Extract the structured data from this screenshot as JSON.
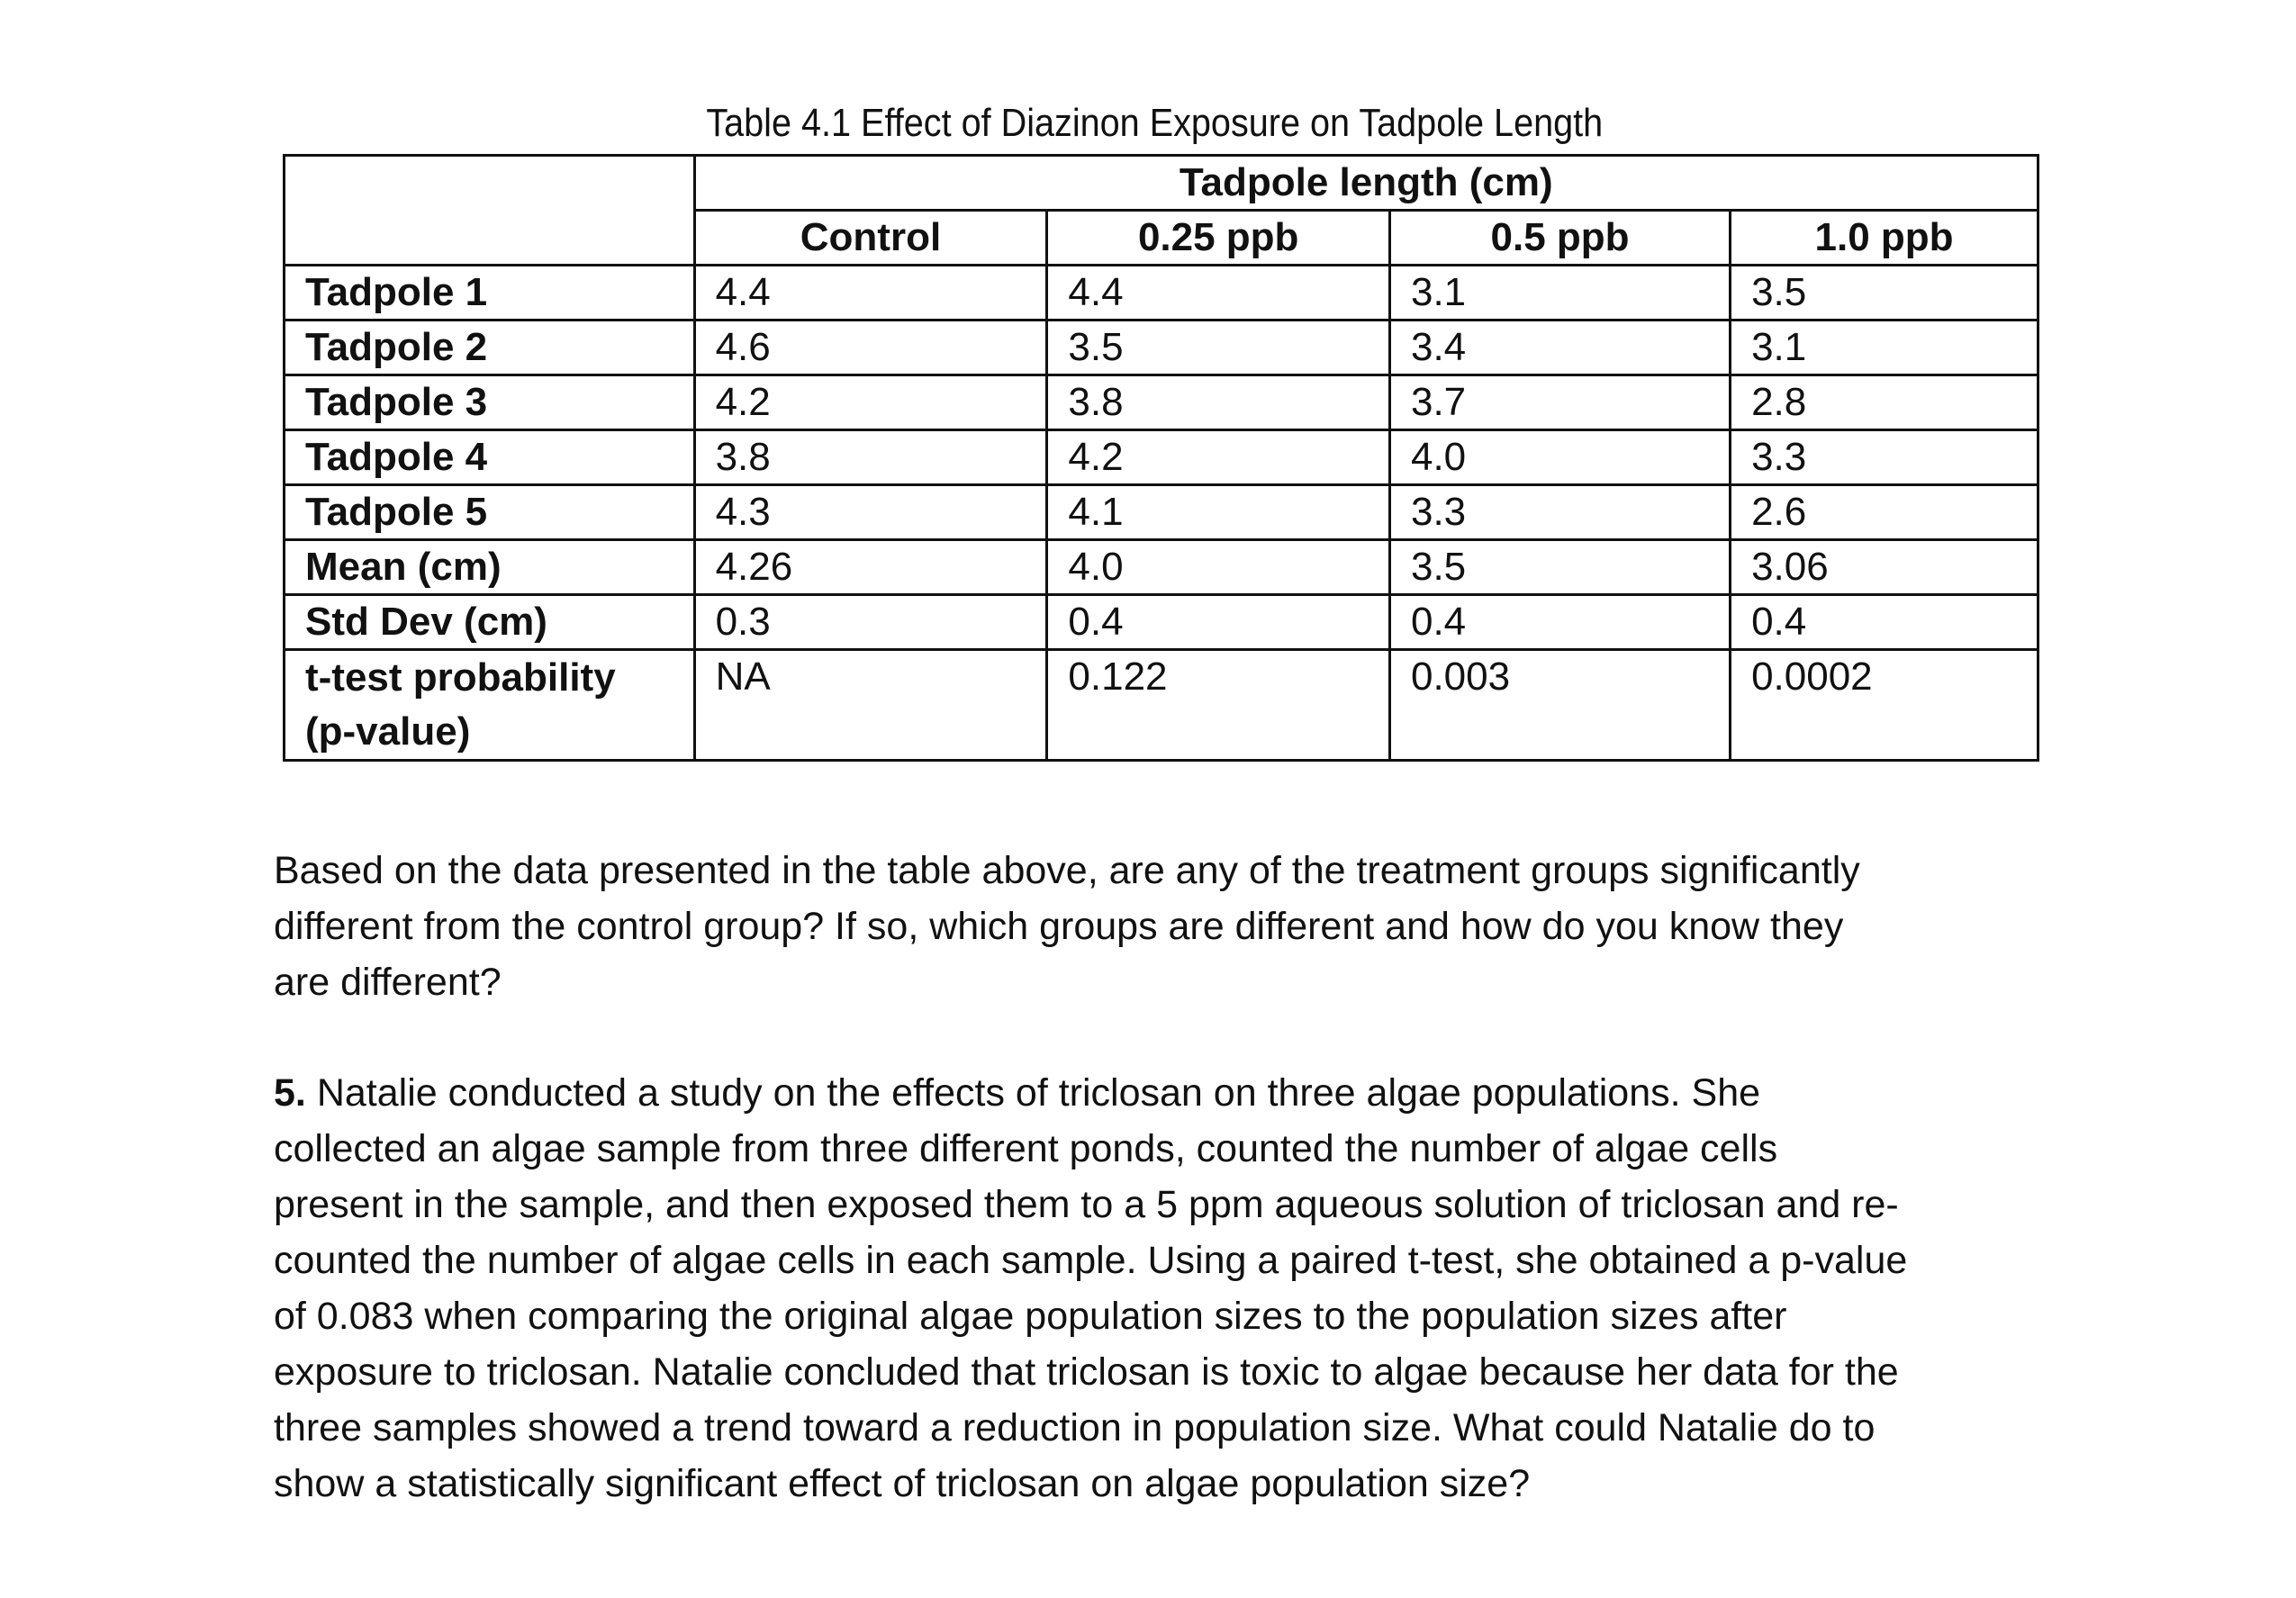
{
  "table": {
    "caption": "Table 4.1 Effect of Diazinon Exposure on Tadpole Length",
    "group_header": "Tadpole length (cm)",
    "columns": [
      "Control",
      "0.25 ppb",
      "0.5 ppb",
      "1.0 ppb"
    ],
    "rows": [
      {
        "label": "Tadpole 1",
        "values": [
          "4.4",
          "4.4",
          "3.1",
          "3.5"
        ]
      },
      {
        "label": "Tadpole 2",
        "values": [
          "4.6",
          "3.5",
          "3.4",
          "3.1"
        ]
      },
      {
        "label": "Tadpole 3",
        "values": [
          "4.2",
          "3.8",
          "3.7",
          "2.8"
        ]
      },
      {
        "label": "Tadpole 4",
        "values": [
          "3.8",
          "4.2",
          "4.0",
          "3.3"
        ]
      },
      {
        "label": "Tadpole 5",
        "values": [
          "4.3",
          "4.1",
          "3.3",
          "2.6"
        ]
      },
      {
        "label": "Mean (cm)",
        "values": [
          "4.26",
          "4.0",
          "3.5",
          "3.06"
        ]
      },
      {
        "label": "Std Dev (cm)",
        "values": [
          "0.3",
          "0.4",
          "0.4",
          "0.4"
        ]
      }
    ],
    "pvalue_row": {
      "label_line1": "t-test probability",
      "label_line2": "(p-value)",
      "values": [
        "NA",
        "0.122",
        "0.003",
        "0.0002"
      ]
    }
  },
  "question4": {
    "lines": [
      "Based on the data presented in the table above, are any of the treatment groups significantly",
      "different from the control group? If so, which groups are different and how do you know they",
      "are different?"
    ]
  },
  "question5": {
    "number": "5.",
    "lines": [
      " Natalie conducted a study on the effects of triclosan on three algae populations. She",
      "collected an algae sample from three different ponds, counted the number of algae cells",
      "present in the sample, and then exposed them to a 5 ppm aqueous solution of triclosan and re-",
      "counted the number of algae cells in each sample. Using a paired t-test, she obtained a p-value",
      "of 0.083 when comparing the original algae population sizes to the population sizes after",
      "exposure to triclosan. Natalie concluded that triclosan is toxic to algae because her data for the",
      "three samples showed a trend toward a reduction in population size. What could Natalie do to",
      "show a statistically significant effect of triclosan on algae population size?"
    ]
  }
}
